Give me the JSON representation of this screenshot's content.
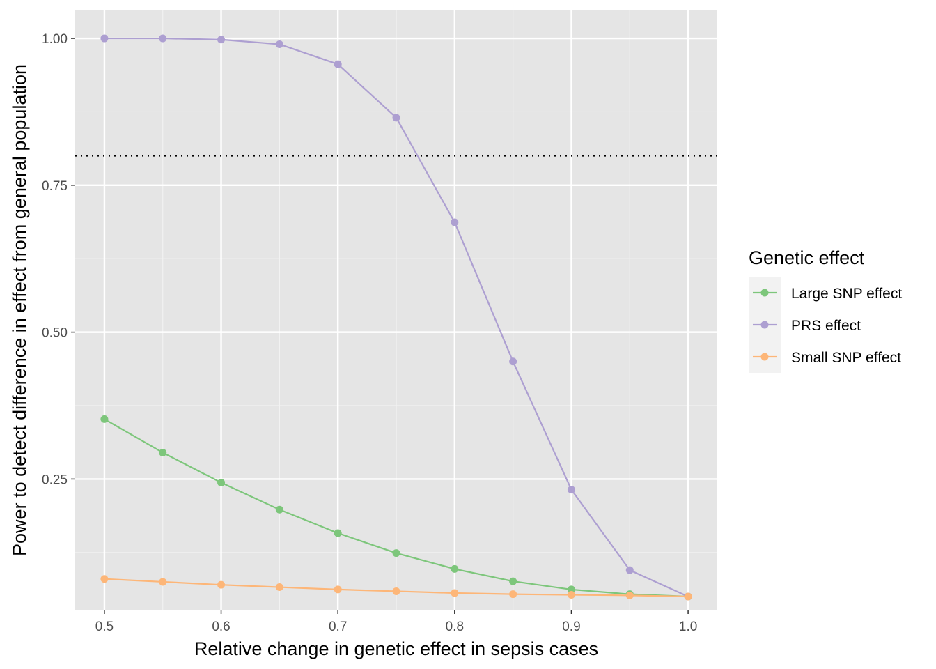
{
  "chart_data": {
    "type": "line",
    "xlabel": "Relative change in genetic effect in sepsis cases",
    "ylabel": "Power to detect difference in effect from general population",
    "xlim": [
      0.475,
      1.025
    ],
    "ylim": [
      0.0275,
      1.0475
    ],
    "x": [
      0.5,
      0.55,
      0.6,
      0.65,
      0.7,
      0.75,
      0.8,
      0.85,
      0.9,
      0.95,
      1.0
    ],
    "x_ticks": [
      "0.5",
      "0.6",
      "0.7",
      "0.8",
      "0.9",
      "1.0"
    ],
    "x_tick_values": [
      0.5,
      0.6,
      0.7,
      0.8,
      0.9,
      1.0
    ],
    "y_ticks": [
      "0.25",
      "0.50",
      "0.75",
      "1.00"
    ],
    "y_tick_values": [
      0.25,
      0.5,
      0.75,
      1.0
    ],
    "grid": true,
    "reference_line": {
      "y": 0.8,
      "style": "dotted",
      "color": "#000000"
    },
    "legend": {
      "title": "Genetic effect",
      "position": "right"
    },
    "series": [
      {
        "name": "Large SNP effect",
        "color": "#7dc67b",
        "values": [
          0.352,
          0.295,
          0.244,
          0.198,
          0.158,
          0.124,
          0.097,
          0.076,
          0.062,
          0.054,
          0.05
        ]
      },
      {
        "name": "PRS effect",
        "color": "#ad9fd1",
        "values": [
          1.0,
          1.0,
          0.998,
          0.99,
          0.956,
          0.865,
          0.687,
          0.45,
          0.232,
          0.095,
          0.05
        ]
      },
      {
        "name": "Small SNP effect",
        "color": "#fdb678",
        "values": [
          0.08,
          0.075,
          0.07,
          0.066,
          0.062,
          0.059,
          0.056,
          0.054,
          0.053,
          0.052,
          0.05
        ]
      }
    ]
  }
}
